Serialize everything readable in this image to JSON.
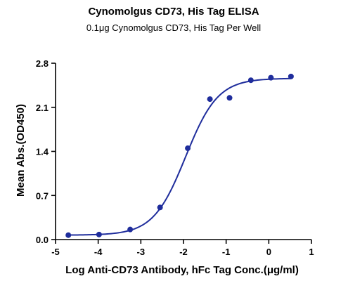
{
  "chart_data": {
    "type": "scatter",
    "title": "Cynomolgus CD73, His Tag ELISA",
    "subtitle": "0.1μg Cynomolgus CD73, His Tag Per Well",
    "xlabel": "Log Anti-CD73 Antibody, hFc Tag Conc.(μg/ml)",
    "ylabel": "Mean Abs.(OD450)",
    "xlim": [
      -5,
      1
    ],
    "ylim": [
      0,
      2.8
    ],
    "x_ticks": [
      -5,
      -4,
      -3,
      -2,
      -1,
      0,
      1
    ],
    "x_tick_labels": [
      "-5",
      "-4",
      "-3",
      "-2",
      "-1",
      "0",
      "1"
    ],
    "y_ticks": [
      0,
      0.7,
      1.4,
      2.1,
      2.8
    ],
    "y_tick_labels": [
      "0.0",
      "0.7",
      "1.4",
      "2.1",
      "2.8"
    ],
    "grid": false,
    "point_color": "#1f2d9c",
    "curve_color": "#1f2d9c",
    "series": [
      {
        "x": [
          -4.7,
          -3.98,
          -3.25,
          -2.55,
          -1.9,
          -1.38,
          -0.92,
          -0.42,
          0.05,
          0.52
        ],
        "y": [
          0.07,
          0.08,
          0.16,
          0.51,
          1.45,
          2.23,
          2.25,
          2.53,
          2.57,
          2.59
        ]
      }
    ],
    "fit": {
      "model": "4PL",
      "bottom": 0.07,
      "top": 2.56,
      "logEC50": -1.95,
      "hill": 1.15
    }
  }
}
